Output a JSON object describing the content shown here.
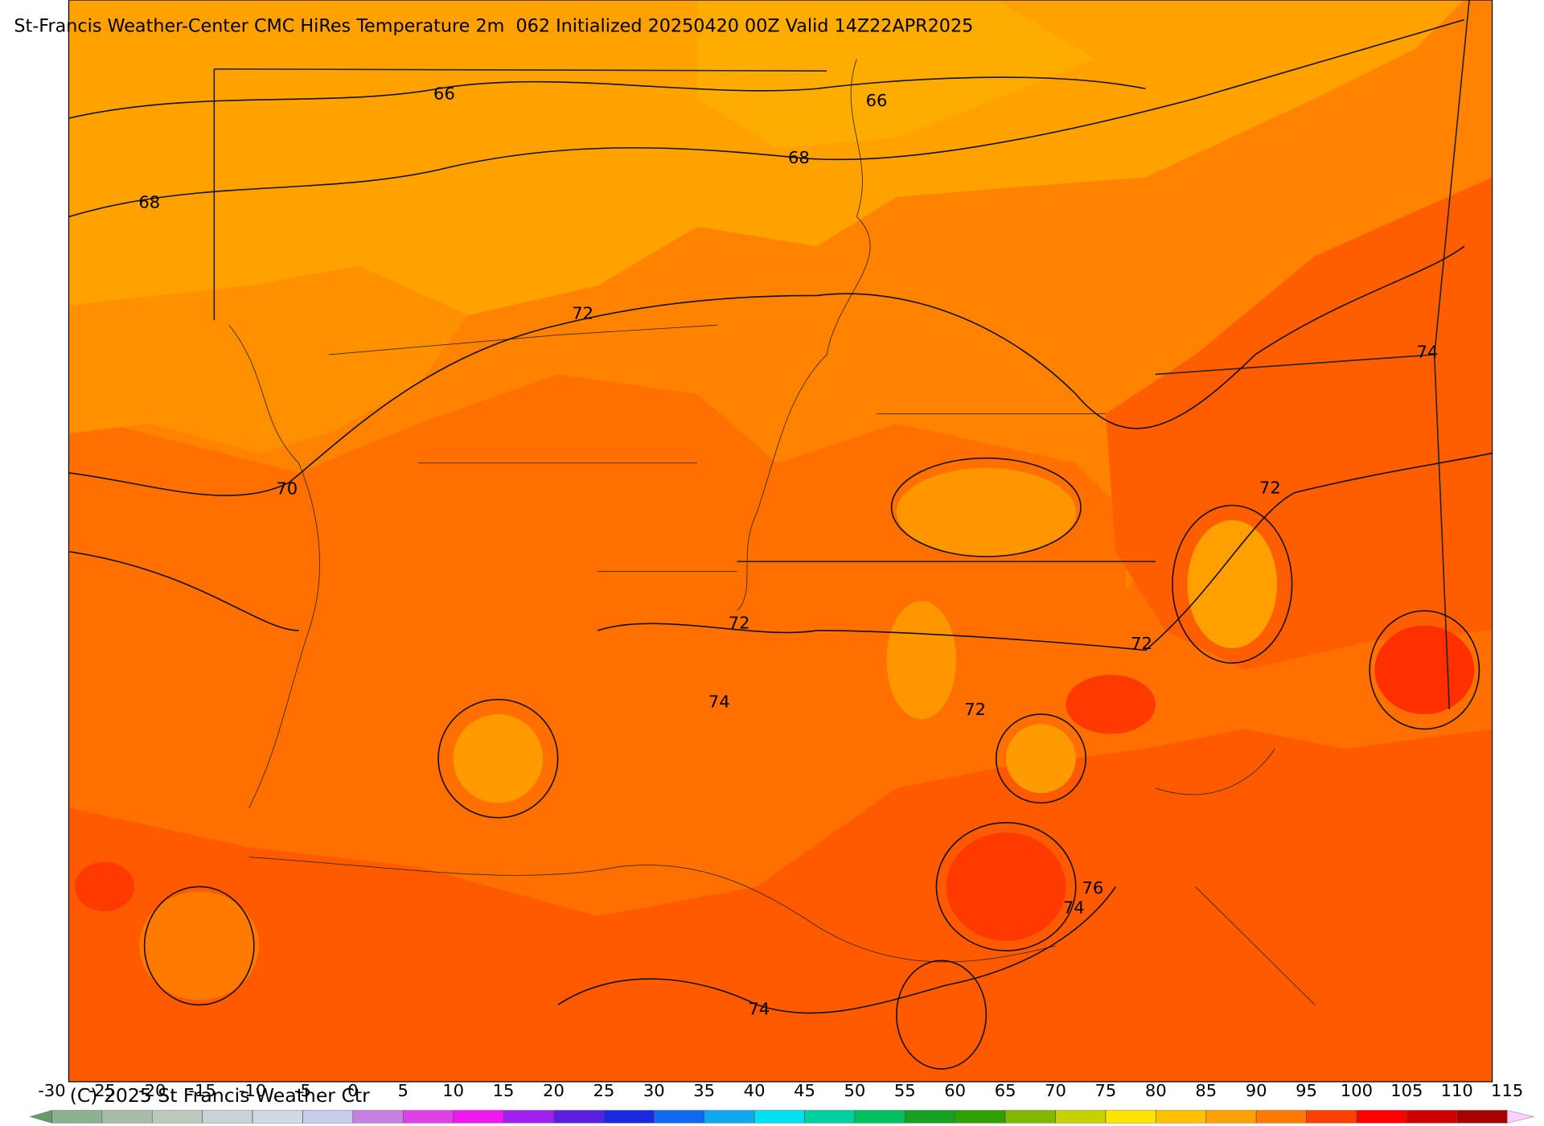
{
  "title": "St-Francis Weather-Center CMC HiRes Temperature 2m  062 Initialized 20250420 00Z Valid 14Z22APR2025",
  "contour_labels": [
    66,
    66,
    68,
    68,
    72,
    74,
    70,
    72,
    72,
    72,
    74,
    72,
    76,
    74,
    74
  ],
  "colorbar": {
    "ticks": [
      -30,
      -25,
      -20,
      -15,
      -10,
      -5,
      0,
      5,
      10,
      15,
      20,
      25,
      30,
      35,
      40,
      45,
      50,
      55,
      60,
      65,
      70,
      75,
      80,
      85,
      90,
      95,
      100,
      105,
      110,
      115
    ],
    "colors": [
      "#8fb08f",
      "#a8bca8",
      "#bcc8bc",
      "#cad2d6",
      "#d2d8e4",
      "#c6cdea",
      "#c880e0",
      "#e040e8",
      "#f018f0",
      "#a020f0",
      "#5a1ee0",
      "#1a28e0",
      "#1068f0",
      "#10a8f0",
      "#00e0f0",
      "#00d0a0",
      "#00c060",
      "#18a020",
      "#30a000",
      "#80b800",
      "#c8d000",
      "#ffe400",
      "#ffc000",
      "#ffa000",
      "#ff7a00",
      "#ff4000",
      "#ff0000",
      "#d00000",
      "#a80000"
    ]
  },
  "credit": "(C) 2025 St Francis Weather Ctr"
}
